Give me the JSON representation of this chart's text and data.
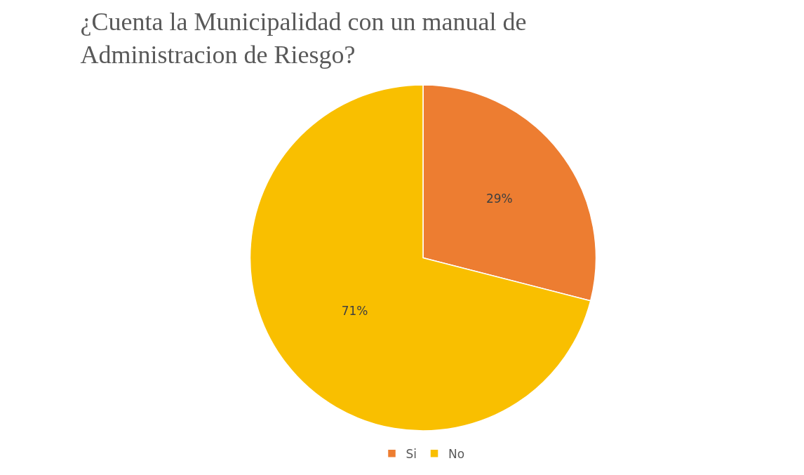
{
  "chart_data": {
    "type": "pie",
    "title": "¿Cuenta la Municipalidad con un manual de Administracion de Riesgo?",
    "categories": [
      "Si",
      "No"
    ],
    "values": [
      29,
      71
    ],
    "value_labels": [
      "29%",
      "71%"
    ],
    "colors": [
      "#ed7d31",
      "#f9bf00"
    ],
    "legend": "bottom"
  }
}
